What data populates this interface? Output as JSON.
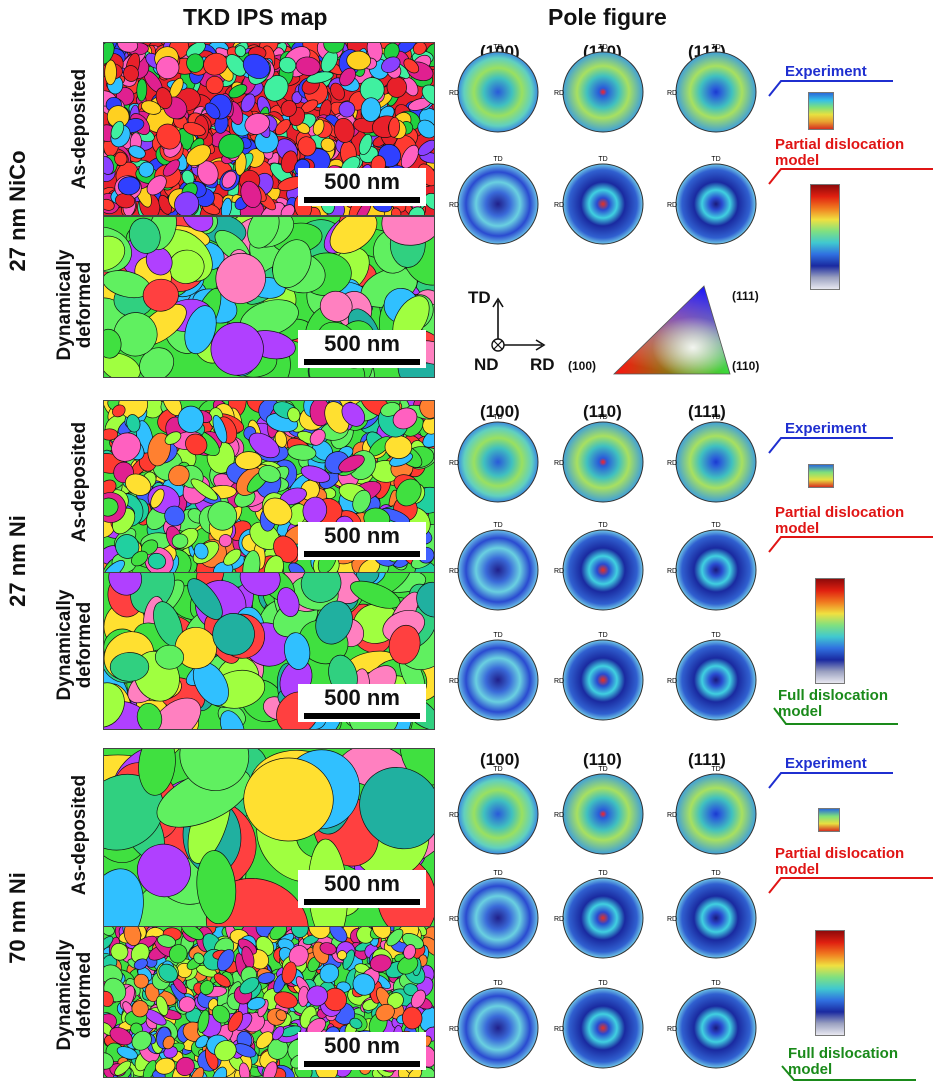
{
  "header": {
    "left": "TKD IPS map",
    "right": "Pole figure"
  },
  "scale_label": "500 nm",
  "pole_labels": [
    "(100)",
    "(110)",
    "(111)"
  ],
  "pf_axis": {
    "td": "TD",
    "rd": "RD"
  },
  "panels": [
    {
      "sample": "27 nm NiCo",
      "states": {
        "top": "As-deposited",
        "bottom": [
          "Dynamically",
          "deformed"
        ]
      },
      "tags": {
        "experiment": "Experiment",
        "partial": [
          "Partial dislocation",
          "model"
        ]
      }
    },
    {
      "sample": "27 nm Ni",
      "states": {
        "top": "As-deposited",
        "bottom": [
          "Dynamically",
          "deformed"
        ]
      },
      "tags": {
        "experiment": "Experiment",
        "partial": [
          "Partial dislocation",
          "model"
        ],
        "full": [
          "Full dislocation",
          "model"
        ]
      }
    },
    {
      "sample": "70 nm Ni",
      "states": {
        "top": "As-deposited",
        "bottom": [
          "Dynamically",
          "deformed"
        ]
      },
      "tags": {
        "experiment": "Experiment",
        "partial": [
          "Partial dislocation",
          "model"
        ],
        "full": [
          "Full dislocation",
          "model"
        ]
      }
    }
  ],
  "legend": {
    "td": "TD",
    "nd": "ND",
    "rd": "RD",
    "corner_100": "(100)",
    "corner_110": "(110)",
    "corner_111": "(111)"
  },
  "colors": {
    "experiment": "#1f2fd0",
    "partial": "#e01515",
    "full": "#1a8a1a"
  }
}
